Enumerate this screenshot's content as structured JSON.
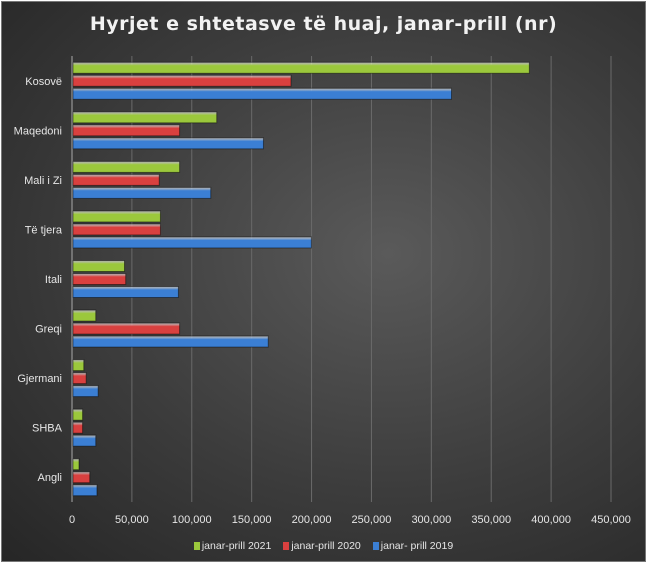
{
  "chart_data": {
    "type": "bar",
    "orientation": "horizontal",
    "style": "3d-bevel",
    "title": "Hyrjet e shtetasve të huaj, janar-prill (nr)",
    "categories": [
      "Kosovë",
      "Maqedoni",
      "Mali i Zi",
      "Të tjera",
      "Itali",
      "Greqi",
      "Gjermani",
      "SHBA",
      "Angli"
    ],
    "series": [
      {
        "name": "janar-prill 2021",
        "color": "#9bc83c",
        "values": [
          381000,
          120000,
          89000,
          73000,
          43000,
          19000,
          9000,
          8000,
          5000
        ]
      },
      {
        "name": "janar-prill 2020",
        "color": "#d9403f",
        "values": [
          182000,
          89000,
          72000,
          73000,
          44000,
          89000,
          11000,
          8000,
          14000
        ]
      },
      {
        "name": "janar- prill 2019",
        "color": "#3b7fd4",
        "values": [
          316000,
          159000,
          115000,
          199000,
          88000,
          163000,
          21000,
          19000,
          20000
        ]
      }
    ],
    "xlim": [
      0,
      450000
    ],
    "xticks": [
      "0",
      "50,000",
      "100,000",
      "150,000",
      "200,000",
      "250,000",
      "300,000",
      "350,000",
      "400,000",
      "450,000"
    ],
    "grid": true,
    "legend": "bottom"
  }
}
